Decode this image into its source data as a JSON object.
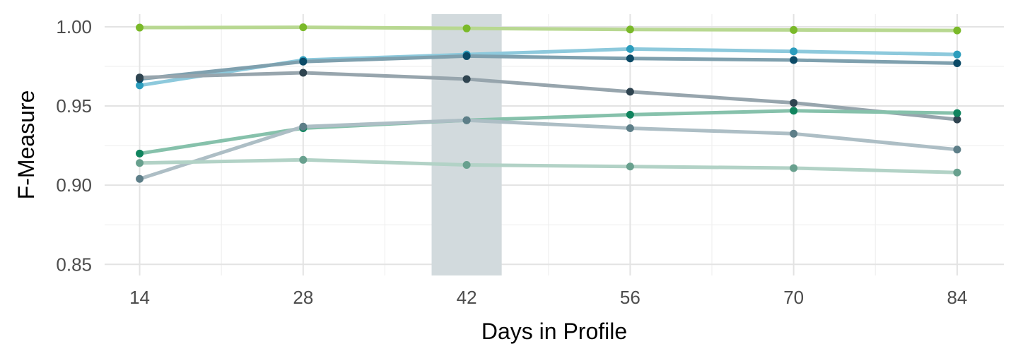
{
  "chart_data": {
    "type": "line",
    "xlabel": "Days in Profile",
    "ylabel": "F-Measure",
    "x": [
      14,
      28,
      42,
      56,
      70,
      84
    ],
    "xlim": [
      11,
      88
    ],
    "ylim": [
      0.843,
      1.008
    ],
    "x_ticks": [
      14,
      28,
      42,
      56,
      70,
      84
    ],
    "y_ticks": [
      0.85,
      0.9,
      0.95,
      1.0
    ],
    "y_tick_labels": [
      "0.85",
      "0.90",
      "0.95",
      "1.00"
    ],
    "grid": true,
    "legend": "none",
    "highlight_band": {
      "x_range": [
        39,
        45
      ],
      "color": "#d2dadd"
    },
    "series": [
      {
        "color": "#7ab929",
        "line_color": "#b8d891",
        "values": [
          0.9995,
          0.9997,
          0.999,
          0.9983,
          0.998,
          0.9977
        ]
      },
      {
        "color": "#2c9dbd",
        "line_color": "#8dc9dc",
        "values": [
          0.963,
          0.979,
          0.9825,
          0.986,
          0.9845,
          0.9825
        ]
      },
      {
        "color": "#0b4a66",
        "line_color": "#7fa0ae",
        "values": [
          0.967,
          0.978,
          0.9815,
          0.98,
          0.979,
          0.977
        ]
      },
      {
        "color": "#2f4450",
        "line_color": "#97a5ad",
        "values": [
          0.968,
          0.971,
          0.967,
          0.959,
          0.952,
          0.9415
        ]
      },
      {
        "color": "#10845e",
        "line_color": "#86c1ab",
        "values": [
          0.92,
          0.936,
          0.941,
          0.9445,
          0.947,
          0.9455
        ]
      },
      {
        "color": "#5d7e88",
        "line_color": "#adbec5",
        "values": [
          0.904,
          0.937,
          0.941,
          0.936,
          0.9325,
          0.9225
        ]
      },
      {
        "color": "#68a08e",
        "line_color": "#b2d2c6",
        "values": [
          0.914,
          0.916,
          0.9128,
          0.9118,
          0.9108,
          0.908
        ]
      }
    ]
  }
}
